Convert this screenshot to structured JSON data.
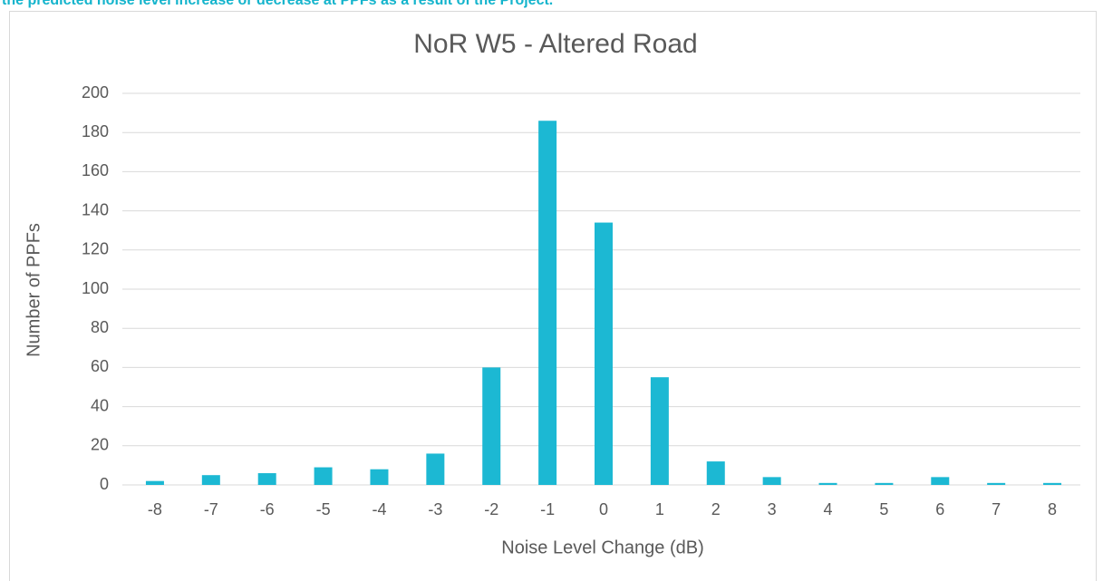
{
  "caption": "the predicted noise level increase or decrease at PPFs as a result of the Project.",
  "chart_data": {
    "type": "bar",
    "title": "NoR W5 - Altered Road",
    "x_label": "Noise Level Change  (dB)",
    "y_label": "Number of PPFs",
    "categories": [
      "-8",
      "-7",
      "-6",
      "-5",
      "-4",
      "-3",
      "-2",
      "-1",
      "0",
      "1",
      "2",
      "3",
      "4",
      "5",
      "6",
      "7",
      "8"
    ],
    "values": [
      2,
      5,
      6,
      9,
      8,
      16,
      60,
      186,
      134,
      55,
      12,
      4,
      1,
      1,
      4,
      1,
      1
    ],
    "color": "#1cb8d3",
    "ylim": [
      0,
      200
    ],
    "yticks": [
      0,
      20,
      40,
      60,
      80,
      100,
      120,
      140,
      160,
      180,
      200
    ],
    "grid": true
  }
}
